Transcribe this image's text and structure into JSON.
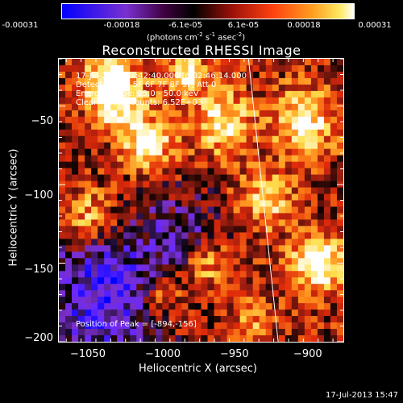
{
  "colorbar": {
    "tick_labels": [
      "-0.00031",
      "-0.00018",
      "-6.1e-05",
      "6.1e-05",
      "0.00018",
      "0.00031"
    ],
    "units_prefix": "(photons cm",
    "units_exp1": "-2",
    "units_mid": " s",
    "units_exp2": "-1",
    "units_mid2": " asec",
    "units_exp3": "-2",
    "units_suffix": ")"
  },
  "chart_data": {
    "type": "heatmap",
    "title": "Reconstructed RHESSI Image",
    "xlabel": "Heliocentric X (arcsec)",
    "ylabel": "Heliocentric Y (arcsec)",
    "xlim": [
      -1070,
      -878
    ],
    "ylim": [
      -200,
      -20
    ],
    "x_ticks": [
      -1050,
      -1000,
      -950,
      -900
    ],
    "y_ticks": [
      -50,
      -100,
      -150,
      -200
    ],
    "x_tick_labels": [
      "−1050",
      "−1000",
      "−950",
      "−900"
    ],
    "y_tick_labels": [
      "−50",
      "−100",
      "−150",
      "−200"
    ],
    "colorbar_range": [
      -0.00031,
      0.00031
    ],
    "colormap": [
      "#0000ff",
      "#6a28ff",
      "#7a30c8",
      "#000000",
      "#8a1a10",
      "#e02a0a",
      "#ff8a1a",
      "#ffe050",
      "#ffffff"
    ],
    "limb_line": {
      "x": [
        -942,
        -922
      ],
      "y": [
        -20,
        -200
      ]
    },
    "peak": {
      "x": -894,
      "y": -156
    },
    "annotations": [
      "17-Jul-2013 02:42:40.000 to 02:46:14.000",
      "Detectors: 3F 5F 6F 7F 8F 9F, Att 0",
      "Energy Range: 25.0 - 50.0 keV",
      "Clean    Total counts: 6.52E+03"
    ],
    "peak_label": "Position of Peak = [-894,-156]"
  },
  "footer": {
    "timestamp": "17-Jul-2013 15:47"
  }
}
